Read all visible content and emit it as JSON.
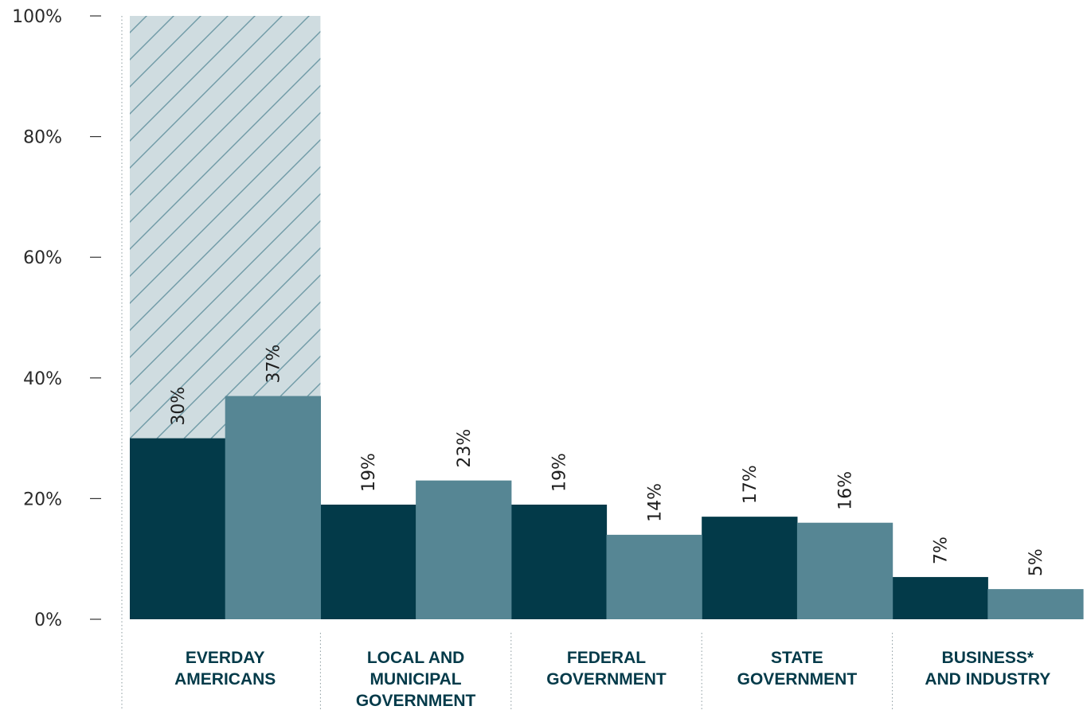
{
  "chart_data": {
    "type": "bar",
    "categories": [
      [
        "EVERDAY",
        "AMERICANS"
      ],
      [
        "LOCAL AND",
        "MUNICIPAL",
        "GOVERNMENT"
      ],
      [
        "FEDERAL",
        "GOVERNMENT"
      ],
      [
        "STATE",
        "GOVERNMENT"
      ],
      [
        "BUSINESS*",
        "AND INDUSTRY"
      ]
    ],
    "series": [
      {
        "values": [
          30,
          19,
          19,
          17,
          7
        ],
        "labels": [
          "30%",
          "19%",
          "19%",
          "17%",
          "7%"
        ],
        "color": "#033a49"
      },
      {
        "values": [
          37,
          23,
          14,
          16,
          5
        ],
        "labels": [
          "37%",
          "23%",
          "14%",
          "16%",
          "5%"
        ],
        "color": "#568694"
      }
    ],
    "highlight": {
      "category_index": 0,
      "fill": "#cfdce0",
      "pattern": "diagonal-hatch",
      "hatch_color": "#6f9aa6"
    },
    "y_ticks": [
      {
        "value": 0,
        "label": "0%"
      },
      {
        "value": 20,
        "label": "20%"
      },
      {
        "value": 40,
        "label": "40%"
      },
      {
        "value": 60,
        "label": "60%"
      },
      {
        "value": 80,
        "label": "80%"
      },
      {
        "value": 100,
        "label": "100%"
      }
    ],
    "ylim": [
      0,
      100
    ],
    "title": "",
    "xlabel": "",
    "ylabel": "",
    "grid": false,
    "category_separators": "dotted",
    "label_color": "#033a49"
  }
}
